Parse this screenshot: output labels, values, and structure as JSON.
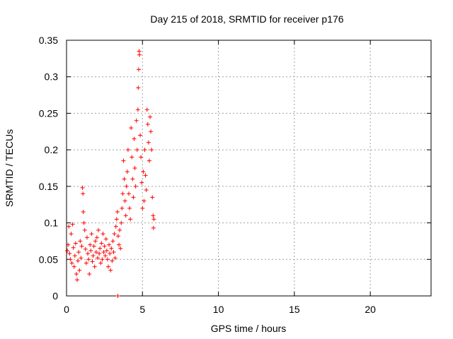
{
  "chart_data": {
    "type": "scatter",
    "title": "Day 215 of 2018, SRMTID for receiver p176",
    "xlabel": "GPS time / hours",
    "ylabel": "SRMTID / TECUs",
    "xlim": [
      0,
      24
    ],
    "ylim": [
      0,
      0.35
    ],
    "x_ticks": [
      0,
      5,
      10,
      15,
      20
    ],
    "x_tick_labels": [
      "0",
      "5",
      "10",
      "15",
      "20"
    ],
    "y_ticks": [
      0,
      0.05,
      0.1,
      0.15,
      0.2,
      0.25,
      0.3,
      0.35
    ],
    "y_tick_labels": [
      "0",
      "0.05",
      "0.1",
      "0.15",
      "0.2",
      "0.25",
      "0.3",
      "0.35"
    ],
    "grid": true,
    "marker": "plus",
    "color": "#ff0000",
    "series": [
      {
        "name": "SRMTID",
        "points": [
          [
            0.05,
            0.062
          ],
          [
            0.1,
            0.07
          ],
          [
            0.15,
            0.095
          ],
          [
            0.2,
            0.058
          ],
          [
            0.25,
            0.05
          ],
          [
            0.3,
            0.085
          ],
          [
            0.35,
            0.045
          ],
          [
            0.4,
            0.098
          ],
          [
            0.45,
            0.066
          ],
          [
            0.5,
            0.04
          ],
          [
            0.55,
            0.055
          ],
          [
            0.6,
            0.072
          ],
          [
            0.65,
            0.03
          ],
          [
            0.7,
            0.022
          ],
          [
            0.75,
            0.048
          ],
          [
            0.8,
            0.06
          ],
          [
            0.85,
            0.035
          ],
          [
            0.9,
            0.075
          ],
          [
            0.95,
            0.052
          ],
          [
            1.0,
            0.068
          ],
          [
            1.05,
            0.148
          ],
          [
            1.08,
            0.14
          ],
          [
            1.1,
            0.115
          ],
          [
            1.15,
            0.1
          ],
          [
            1.2,
            0.09
          ],
          [
            1.25,
            0.064
          ],
          [
            1.3,
            0.045
          ],
          [
            1.35,
            0.08
          ],
          [
            1.4,
            0.058
          ],
          [
            1.45,
            0.05
          ],
          [
            1.5,
            0.03
          ],
          [
            1.55,
            0.07
          ],
          [
            1.6,
            0.062
          ],
          [
            1.65,
            0.085
          ],
          [
            1.7,
            0.047
          ],
          [
            1.75,
            0.055
          ],
          [
            1.8,
            0.068
          ],
          [
            1.85,
            0.04
          ],
          [
            1.9,
            0.075
          ],
          [
            1.95,
            0.06
          ],
          [
            2.0,
            0.08
          ],
          [
            2.05,
            0.052
          ],
          [
            2.1,
            0.09
          ],
          [
            2.15,
            0.058
          ],
          [
            2.2,
            0.065
          ],
          [
            2.25,
            0.045
          ],
          [
            2.3,
            0.072
          ],
          [
            2.35,
            0.05
          ],
          [
            2.4,
            0.085
          ],
          [
            2.45,
            0.06
          ],
          [
            2.5,
            0.068
          ],
          [
            2.55,
            0.055
          ],
          [
            2.6,
            0.078
          ],
          [
            2.65,
            0.062
          ],
          [
            2.7,
            0.05
          ],
          [
            2.75,
            0.04
          ],
          [
            2.8,
            0.07
          ],
          [
            2.85,
            0.058
          ],
          [
            2.9,
            0.035
          ],
          [
            2.95,
            0.065
          ],
          [
            3.0,
            0.048
          ],
          [
            3.05,
            0.075
          ],
          [
            3.1,
            0.06
          ],
          [
            3.15,
            0.085
          ],
          [
            3.2,
            0.052
          ],
          [
            3.25,
            0.095
          ],
          [
            3.3,
            0.105
          ],
          [
            3.35,
            0.115
          ],
          [
            3.38,
            0.0
          ],
          [
            3.4,
            0.082
          ],
          [
            3.45,
            0.07
          ],
          [
            3.5,
            0.09
          ],
          [
            3.55,
            0.065
          ],
          [
            3.6,
            0.1
          ],
          [
            3.65,
            0.12
          ],
          [
            3.7,
            0.14
          ],
          [
            3.75,
            0.185
          ],
          [
            3.8,
            0.16
          ],
          [
            3.85,
            0.13
          ],
          [
            3.9,
            0.11
          ],
          [
            3.95,
            0.15
          ],
          [
            4.0,
            0.17
          ],
          [
            4.05,
            0.2
          ],
          [
            4.1,
            0.14
          ],
          [
            4.15,
            0.12
          ],
          [
            4.2,
            0.105
          ],
          [
            4.25,
            0.23
          ],
          [
            4.3,
            0.19
          ],
          [
            4.35,
            0.16
          ],
          [
            4.4,
            0.135
          ],
          [
            4.45,
            0.215
          ],
          [
            4.5,
            0.175
          ],
          [
            4.55,
            0.15
          ],
          [
            4.6,
            0.24
          ],
          [
            4.65,
            0.2
          ],
          [
            4.7,
            0.255
          ],
          [
            4.72,
            0.285
          ],
          [
            4.75,
            0.31
          ],
          [
            4.78,
            0.335
          ],
          [
            4.8,
            0.33
          ],
          [
            4.85,
            0.22
          ],
          [
            4.9,
            0.19
          ],
          [
            4.95,
            0.155
          ],
          [
            5.0,
            0.12
          ],
          [
            5.05,
            0.17
          ],
          [
            5.1,
            0.13
          ],
          [
            5.15,
            0.2
          ],
          [
            5.2,
            0.165
          ],
          [
            5.25,
            0.145
          ],
          [
            5.3,
            0.255
          ],
          [
            5.35,
            0.235
          ],
          [
            5.4,
            0.21
          ],
          [
            5.45,
            0.185
          ],
          [
            5.5,
            0.245
          ],
          [
            5.55,
            0.225
          ],
          [
            5.6,
            0.2
          ],
          [
            5.65,
            0.135
          ],
          [
            5.7,
            0.11
          ],
          [
            5.72,
            0.093
          ],
          [
            5.75,
            0.105
          ]
        ]
      }
    ]
  }
}
